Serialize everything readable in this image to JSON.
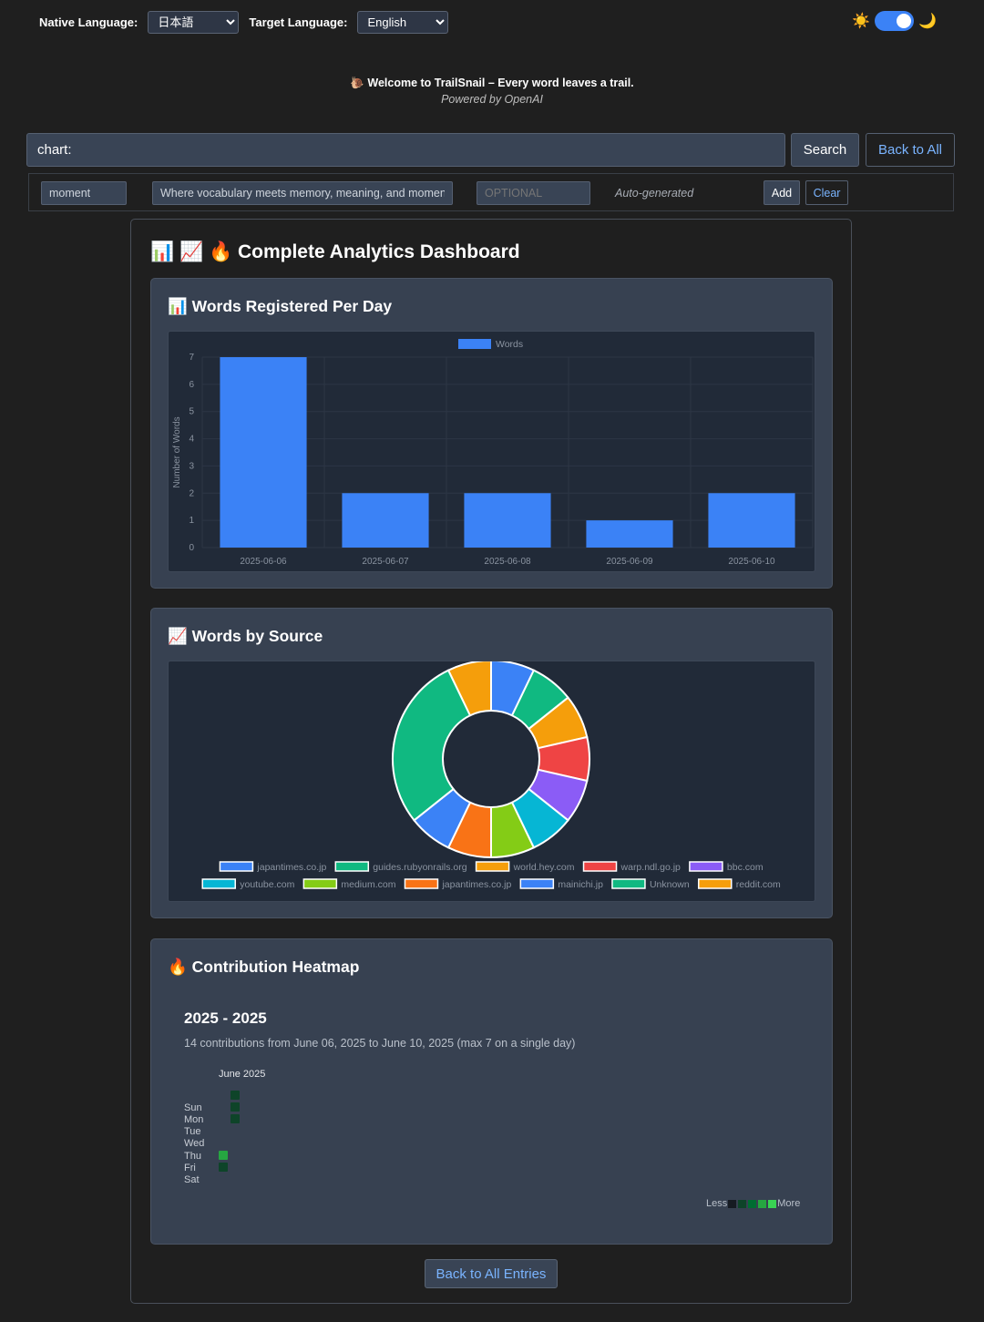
{
  "top": {
    "native_label": "Native Language:",
    "native_value": "日本語",
    "target_label": "Target Language:",
    "target_value": "English",
    "sun_icon": "☀️",
    "moon_icon": "🌙"
  },
  "welcome": {
    "line": "🐌 Welcome to TrailSnail – Every word leaves a trail.",
    "powered": "Powered by OpenAI"
  },
  "search": {
    "value": "chart:",
    "search_label": "Search",
    "back_label": "Back to All"
  },
  "add_row": {
    "word_value": "moment",
    "desc_value": "Where vocabulary meets memory, meaning, and moment",
    "optional_placeholder": "OPTIONAL",
    "auto_text": "Auto-generated",
    "add_label": "Add",
    "clear_label": "Clear"
  },
  "dashboard": {
    "title": "📊 📈 🔥 Complete Analytics Dashboard",
    "card1_title": "📊 Words Registered Per Day",
    "card2_title": "📈 Words by Source",
    "card3_title": "🔥 Contribution Heatmap",
    "back_bottom": "Back to All Entries"
  },
  "heatmap": {
    "year_range": "2025 - 2025",
    "summary": "14 contributions from June 06, 2025 to June 10, 2025 (max 7 on a single day)",
    "month": "June 2025",
    "days": [
      "Sun",
      "Mon",
      "Tue",
      "Wed",
      "Thu",
      "Fri",
      "Sat"
    ],
    "less": "Less",
    "more": "More",
    "colors": [
      "#161b22",
      "#0e4429",
      "#006d32",
      "#26a641",
      "#39d353"
    ]
  },
  "chart_data": [
    {
      "type": "bar",
      "categories": [
        "2025-06-06",
        "2025-06-07",
        "2025-06-08",
        "2025-06-09",
        "2025-06-10"
      ],
      "series": [
        {
          "name": "Words",
          "values": [
            7,
            2,
            2,
            1,
            2
          ],
          "color": "#3b82f6"
        }
      ],
      "ylabel": "Number of Words",
      "ylim": [
        0,
        7
      ],
      "yticks": [
        0,
        1,
        2,
        3,
        4,
        5,
        6,
        7
      ],
      "legend": "top-center",
      "grid": true
    },
    {
      "type": "pie",
      "donut": true,
      "labels": [
        "japantimes.co.jp",
        "guides.rubyonrails.org",
        "world.hey.com",
        "warp.ndl.go.jp",
        "bbc.com",
        "youtube.com",
        "medium.com",
        "japantimes.co.jp",
        "mainichi.jp",
        "Unknown",
        "reddit.com"
      ],
      "values": [
        1,
        1,
        1,
        1,
        1,
        1,
        1,
        1,
        1,
        4,
        1
      ],
      "colors": [
        "#3b82f6",
        "#10b981",
        "#f59e0b",
        "#ef4444",
        "#8b5cf6",
        "#06b6d4",
        "#84cc16",
        "#f97316",
        "#3b82f6",
        "#10b981",
        "#f59e0b"
      ],
      "legend": "bottom"
    }
  ]
}
